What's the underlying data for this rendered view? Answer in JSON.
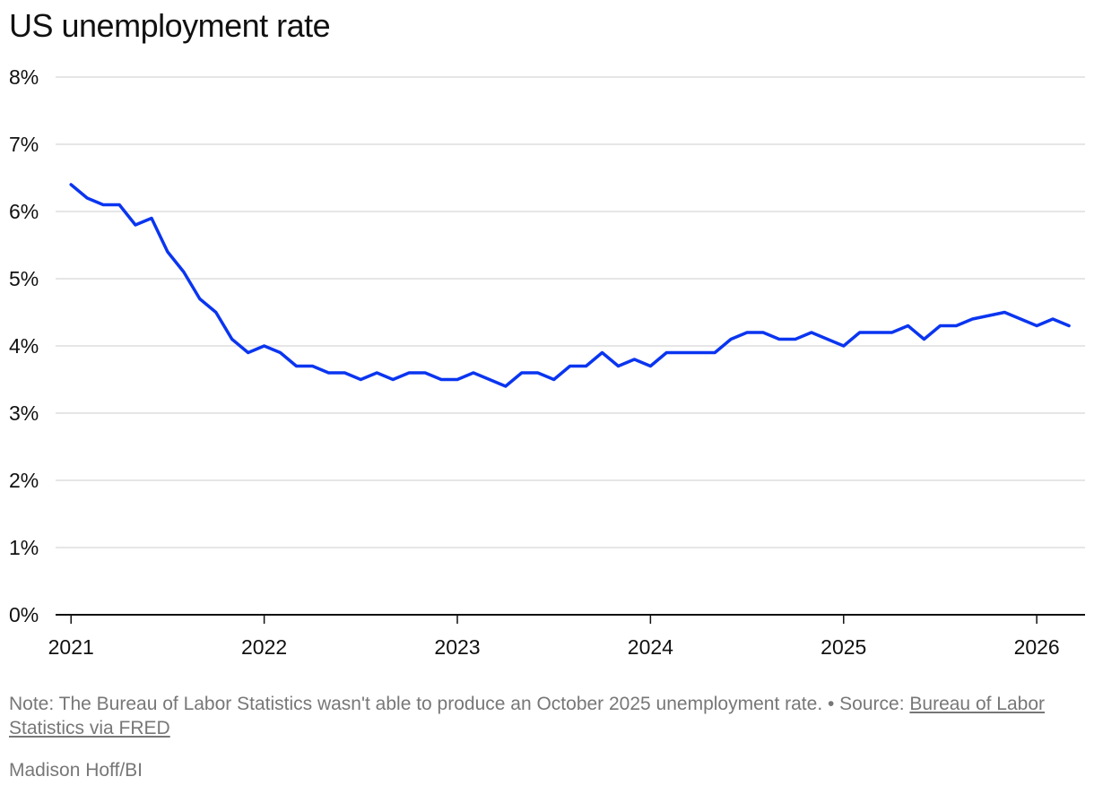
{
  "title": "US unemployment rate",
  "note": {
    "text": "Note: The Bureau of Labor Statistics wasn't able to produce an October 2025 unemployment rate. • Source:",
    "source_link": "Bureau of Labor Statistics via FRED"
  },
  "credit": "Madison Hoff/BI",
  "colors": {
    "line": "#0a35f0",
    "grid": "#dddddd",
    "axis": "#111111",
    "text": "#111111",
    "note": "#777777"
  },
  "chart_data": {
    "type": "line",
    "title": "US unemployment rate",
    "xlabel": "",
    "ylabel": "",
    "ylim": [
      0,
      8
    ],
    "xlim": [
      "2021-01",
      "2026-03"
    ],
    "grid": true,
    "y_ticks": [
      "0%",
      "1%",
      "2%",
      "3%",
      "4%",
      "5%",
      "6%",
      "7%",
      "8%"
    ],
    "x_ticks": [
      "2021",
      "2022",
      "2023",
      "2024",
      "2025",
      "2026"
    ],
    "series": [
      {
        "name": "",
        "points": [
          [
            "2021-01",
            6.4
          ],
          [
            "2021-02",
            6.2
          ],
          [
            "2021-03",
            6.1
          ],
          [
            "2021-04",
            6.1
          ],
          [
            "2021-05",
            5.8
          ],
          [
            "2021-06",
            5.9
          ],
          [
            "2021-07",
            5.4
          ],
          [
            "2021-08",
            5.1
          ],
          [
            "2021-09",
            4.7
          ],
          [
            "2021-10",
            4.5
          ],
          [
            "2021-11",
            4.1
          ],
          [
            "2021-12",
            3.9
          ],
          [
            "2022-01",
            4.0
          ],
          [
            "2022-02",
            3.9
          ],
          [
            "2022-03",
            3.7
          ],
          [
            "2022-04",
            3.7
          ],
          [
            "2022-05",
            3.6
          ],
          [
            "2022-06",
            3.6
          ],
          [
            "2022-07",
            3.5
          ],
          [
            "2022-08",
            3.6
          ],
          [
            "2022-09",
            3.5
          ],
          [
            "2022-10",
            3.6
          ],
          [
            "2022-11",
            3.6
          ],
          [
            "2022-12",
            3.5
          ],
          [
            "2023-01",
            3.5
          ],
          [
            "2023-02",
            3.6
          ],
          [
            "2023-03",
            3.5
          ],
          [
            "2023-04",
            3.4
          ],
          [
            "2023-05",
            3.6
          ],
          [
            "2023-06",
            3.6
          ],
          [
            "2023-07",
            3.5
          ],
          [
            "2023-08",
            3.7
          ],
          [
            "2023-09",
            3.7
          ],
          [
            "2023-10",
            3.9
          ],
          [
            "2023-11",
            3.7
          ],
          [
            "2023-12",
            3.8
          ],
          [
            "2024-01",
            3.7
          ],
          [
            "2024-02",
            3.9
          ],
          [
            "2024-03",
            3.9
          ],
          [
            "2024-04",
            3.9
          ],
          [
            "2024-05",
            3.9
          ],
          [
            "2024-06",
            4.1
          ],
          [
            "2024-07",
            4.2
          ],
          [
            "2024-08",
            4.2
          ],
          [
            "2024-09",
            4.1
          ],
          [
            "2024-10",
            4.1
          ],
          [
            "2024-11",
            4.2
          ],
          [
            "2024-12",
            4.1
          ],
          [
            "2025-01",
            4.0
          ],
          [
            "2025-02",
            4.2
          ],
          [
            "2025-03",
            4.2
          ],
          [
            "2025-04",
            4.2
          ],
          [
            "2025-05",
            4.3
          ],
          [
            "2025-06",
            4.1
          ],
          [
            "2025-07",
            4.3
          ],
          [
            "2025-08",
            4.3
          ],
          [
            "2025-09",
            4.4
          ],
          [
            "2025-11",
            4.5
          ],
          [
            "2025-12",
            4.4
          ],
          [
            "2026-01",
            4.3
          ],
          [
            "2026-02",
            4.4
          ],
          [
            "2026-03",
            4.3
          ]
        ]
      }
    ]
  }
}
